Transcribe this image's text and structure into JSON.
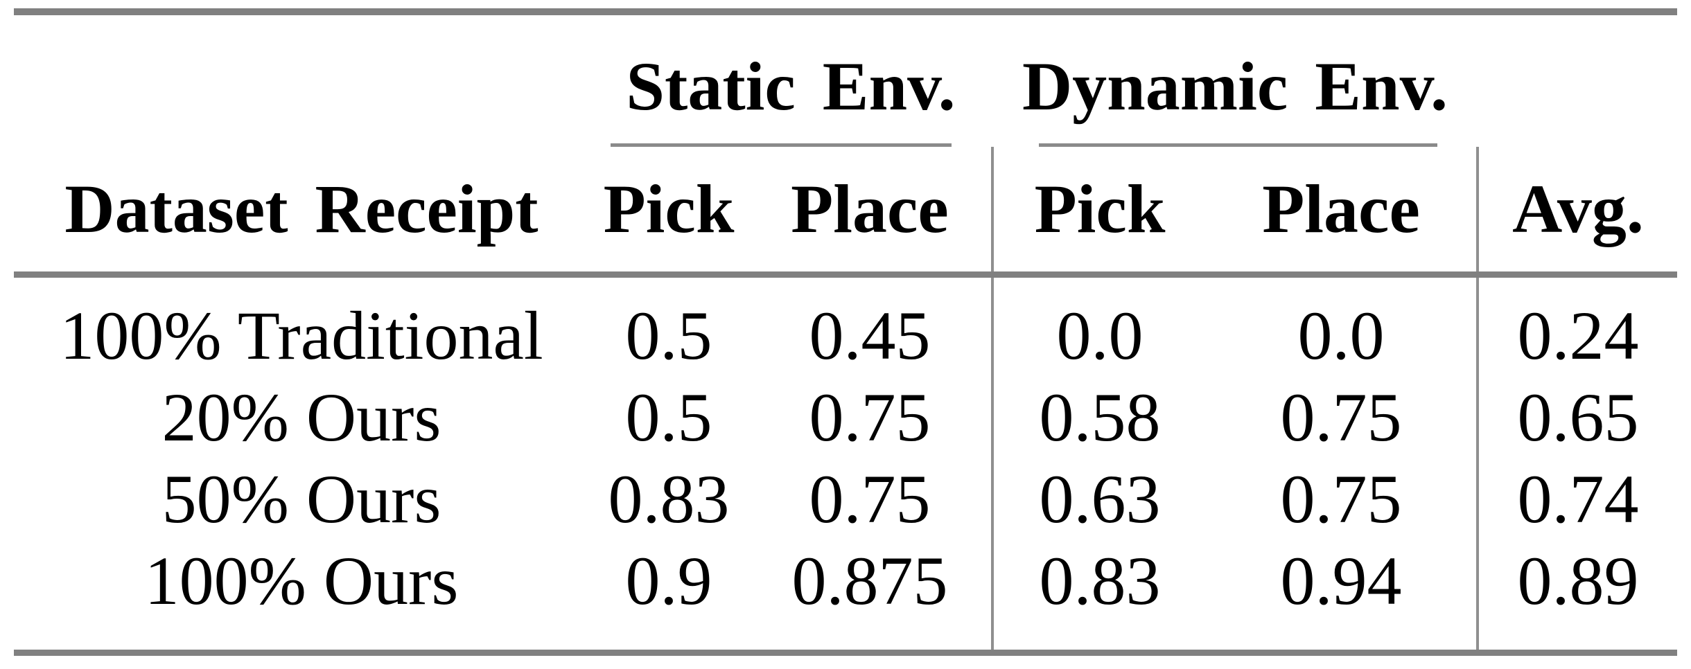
{
  "table": {
    "groups": [
      {
        "label": "Static Env."
      },
      {
        "label": "Dynamic Env."
      }
    ],
    "headers": {
      "dataset": "Dataset Receipt",
      "static_pick": "Pick",
      "static_place": "Place",
      "dynamic_pick": "Pick",
      "dynamic_place": "Place",
      "avg": "Avg."
    },
    "rows": [
      {
        "label": "100% Traditional",
        "static_pick": "0.5",
        "static_place": "0.45",
        "dynamic_pick": "0.0",
        "dynamic_place": "0.0",
        "avg": "0.24"
      },
      {
        "label": "20% Ours",
        "static_pick": "0.5",
        "static_place": "0.75",
        "dynamic_pick": "0.58",
        "dynamic_place": "0.75",
        "avg": "0.65"
      },
      {
        "label": "50% Ours",
        "static_pick": "0.83",
        "static_place": "0.75",
        "dynamic_pick": "0.63",
        "dynamic_place": "0.75",
        "avg": "0.74"
      },
      {
        "label": "100% Ours",
        "static_pick": "0.9",
        "static_place": "0.875",
        "dynamic_pick": "0.83",
        "dynamic_place": "0.94",
        "avg": "0.89"
      }
    ],
    "colors": {
      "thick_rule": "#808080",
      "thin_rule": "#8a8a8a",
      "vertical_divider": "#8f8f8f",
      "text": "#000000",
      "background": "#ffffff"
    }
  }
}
